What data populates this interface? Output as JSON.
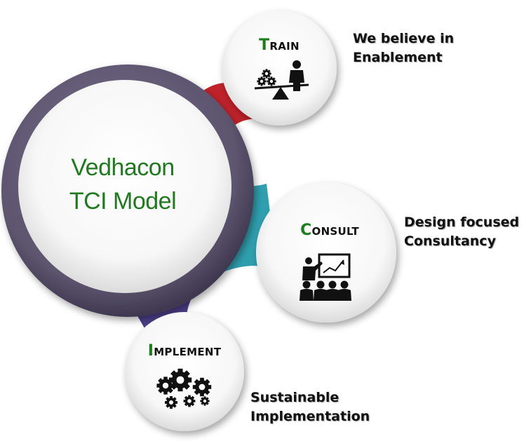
{
  "center": {
    "line1": "Vedhacon",
    "line2": "TCI Model"
  },
  "nodes": {
    "train": {
      "cap": "T",
      "rest": "rain",
      "caption_line1": "We believe in",
      "caption_line2": "Enablement",
      "connector_color": "#c0222a"
    },
    "consult": {
      "cap": "C",
      "rest": "onsult",
      "caption_line1": "Design focused",
      "caption_line2": "Consultancy",
      "connector_color": "#2f9fae"
    },
    "implement": {
      "cap": "I",
      "rest": "mplement",
      "caption_line1": "Sustainable",
      "caption_line2": "Implementation",
      "connector_color": "#4d3f8a"
    }
  },
  "colors": {
    "center_ring": "#5f5670",
    "title_green": "#1f7a1f",
    "icon": "#111111"
  }
}
